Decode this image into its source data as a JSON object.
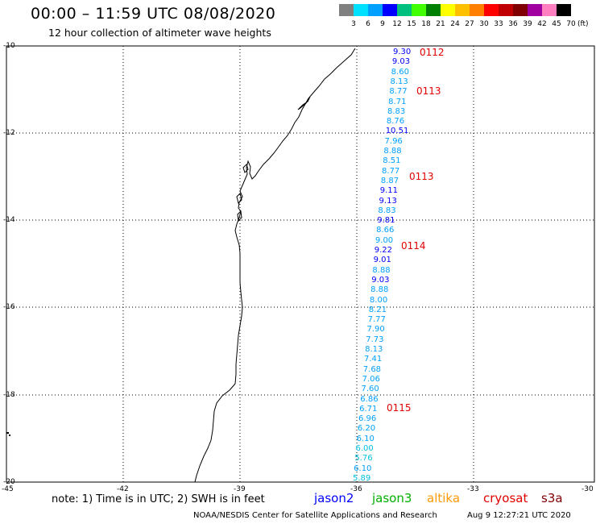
{
  "title": "00:00 – 11:59 UTC 08/08/2020",
  "subtitle": "12 hour collection of altimeter wave heights",
  "scale": {
    "labels": [
      "3",
      "6",
      "9",
      "12",
      "15",
      "18",
      "21",
      "24",
      "27",
      "30",
      "33",
      "36",
      "39",
      "42",
      "45",
      "70"
    ],
    "unit": "(ft)",
    "colors": [
      "#808080",
      "#00e0ff",
      "#00a0ff",
      "#0000ff",
      "#00c080",
      "#40ff00",
      "#008000",
      "#ffff00",
      "#ffc000",
      "#ff8000",
      "#ff0000",
      "#c00000",
      "#800000",
      "#a000a0",
      "#ff80c0",
      "#000000"
    ]
  },
  "axes": {
    "y_ticks": [
      "-10",
      "-12",
      "-14",
      "-16",
      "-18",
      "-20"
    ],
    "x_ticks": [
      "-45",
      "-42",
      "-39",
      "-36",
      "-33",
      "-30"
    ]
  },
  "wave_heights": [
    {
      "v": "9.30",
      "c": "#0000ff"
    },
    {
      "v": "9.03",
      "c": "#0000ff"
    },
    {
      "v": "8.60",
      "c": "#00a0ff"
    },
    {
      "v": "8.13",
      "c": "#00a0ff"
    },
    {
      "v": "8.77",
      "c": "#00a0ff"
    },
    {
      "v": "8.71",
      "c": "#00a0ff"
    },
    {
      "v": "8.83",
      "c": "#00a0ff"
    },
    {
      "v": "8.76",
      "c": "#00a0ff"
    },
    {
      "v": "10.51",
      "c": "#0000ff"
    },
    {
      "v": "7.96",
      "c": "#00a0ff"
    },
    {
      "v": "8.88",
      "c": "#00a0ff"
    },
    {
      "v": "8.51",
      "c": "#00a0ff"
    },
    {
      "v": "8.77",
      "c": "#00a0ff"
    },
    {
      "v": "8.87",
      "c": "#00a0ff"
    },
    {
      "v": "9.11",
      "c": "#0000ff"
    },
    {
      "v": "9.13",
      "c": "#0000ff"
    },
    {
      "v": "8.83",
      "c": "#00a0ff"
    },
    {
      "v": "9.81",
      "c": "#0000ff"
    },
    {
      "v": "8.66",
      "c": "#00a0ff"
    },
    {
      "v": "9.00",
      "c": "#00a0ff"
    },
    {
      "v": "9.22",
      "c": "#0000ff"
    },
    {
      "v": "9.01",
      "c": "#0000ff"
    },
    {
      "v": "8.88",
      "c": "#00a0ff"
    },
    {
      "v": "9.03",
      "c": "#0000ff"
    },
    {
      "v": "8.88",
      "c": "#00a0ff"
    },
    {
      "v": "8.00",
      "c": "#00a0ff"
    },
    {
      "v": "8.21",
      "c": "#00a0ff"
    },
    {
      "v": "7.77",
      "c": "#00a0ff"
    },
    {
      "v": "7.90",
      "c": "#00a0ff"
    },
    {
      "v": "7.73",
      "c": "#00a0ff"
    },
    {
      "v": "8.13",
      "c": "#00a0ff"
    },
    {
      "v": "7.41",
      "c": "#00a0ff"
    },
    {
      "v": "7.68",
      "c": "#00a0ff"
    },
    {
      "v": "7.06",
      "c": "#00a0ff"
    },
    {
      "v": "7.60",
      "c": "#00a0ff"
    },
    {
      "v": "6.86",
      "c": "#00a0ff"
    },
    {
      "v": "6.71",
      "c": "#00a0ff"
    },
    {
      "v": "6.96",
      "c": "#00a0ff"
    },
    {
      "v": "6.20",
      "c": "#00a0ff"
    },
    {
      "v": "6.10",
      "c": "#00a0ff"
    },
    {
      "v": "6.00",
      "c": "#00c0e0"
    },
    {
      "v": "5.76",
      "c": "#00c0e0"
    },
    {
      "v": "6.10",
      "c": "#00a0ff"
    },
    {
      "v": "5.89",
      "c": "#00c0e0"
    }
  ],
  "track_labels": [
    "0112",
    "0113",
    "0113",
    "0114",
    "0115"
  ],
  "note": "note: 1) Time is in UTC; 2) SWH is in feet",
  "satellites": [
    {
      "name": "jason2",
      "color": "#0000ff"
    },
    {
      "name": "jason3",
      "color": "#00b000"
    },
    {
      "name": "altika",
      "color": "#ff9900"
    },
    {
      "name": "cryosat",
      "color": "#e00000"
    },
    {
      "name": "s3a",
      "color": "#800000"
    }
  ],
  "credit": "NOAA/NESDIS Center for Satellite Applications and Research",
  "timestamp": "Aug  9 12:27:21 UTC 2020"
}
